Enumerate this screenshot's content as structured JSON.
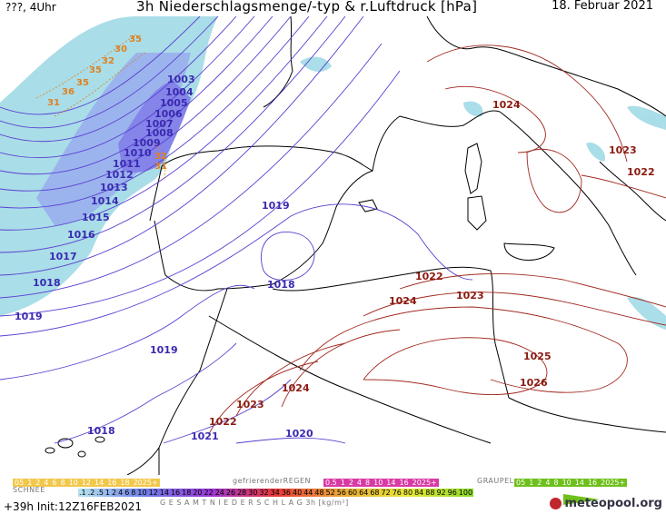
{
  "header": {
    "left": "???, 4Uhr",
    "title": "3h Niederschlagsmenge/-typ & r.Luftdruck [hPa]",
    "date": "18. Februar 2021"
  },
  "isobars": {
    "blue": [
      "1003",
      "1004",
      "1005",
      "1006",
      "1007",
      "1008",
      "1009",
      "1010",
      "1011",
      "1012",
      "1013",
      "1014",
      "1015",
      "1016",
      "1017",
      "1018",
      "1019",
      "1019",
      "1018",
      "1019",
      "1019",
      "1018",
      "1021",
      "1020"
    ],
    "red": [
      "1024",
      "1023",
      "1022",
      "1022",
      "1024",
      "1023",
      "1025",
      "1026",
      "1024",
      "1023",
      "1022"
    ],
    "orange": [
      "35",
      "30",
      "32",
      "35",
      "35",
      "36",
      "31",
      "32",
      "31"
    ]
  },
  "legend": {
    "snow_label": "SCHNEE",
    "snow_values": [
      "05",
      "1",
      "2",
      "4",
      "6",
      "8",
      "10",
      "12",
      "14",
      "16",
      "18",
      "2025+"
    ],
    "freezing_label": "gefrierenderREGEN",
    "freezing_values": [
      "0.5",
      "1",
      "2",
      "4",
      "8",
      "10",
      "14",
      "16",
      "2025+"
    ],
    "graupel_label": "GRAUPEL",
    "graupel_values": [
      "05",
      "1",
      "2",
      "4",
      "8",
      "10",
      "14",
      "16",
      "2025+"
    ],
    "total_label": "G E S A M T N I E D E R S C H L A G   3h   [kg/m²]",
    "total_values": [
      ".1",
      ".2",
      ".5",
      "1",
      "2",
      "4",
      "6",
      "8",
      "10",
      "12",
      "14",
      "16",
      "18",
      "20",
      "22",
      "24",
      "26",
      "28",
      "30",
      "32",
      "34",
      "36",
      "40",
      "44",
      "48",
      "52",
      "56",
      "60",
      "64",
      "68",
      "72",
      "76",
      "80",
      "84",
      "88",
      "92",
      "96",
      "100"
    ],
    "run": "+39h Init:12Z16FEB2021",
    "brand": "meteopool.org"
  },
  "colors": {
    "blue_isobar": "#5a3fd0",
    "red_isobar": "#a0281e",
    "precip_light": "#8fd3e0",
    "precip_mid": "#7fa7e8",
    "precip_heavy": "#6a6ae6",
    "brand_red": "#c0262d"
  }
}
